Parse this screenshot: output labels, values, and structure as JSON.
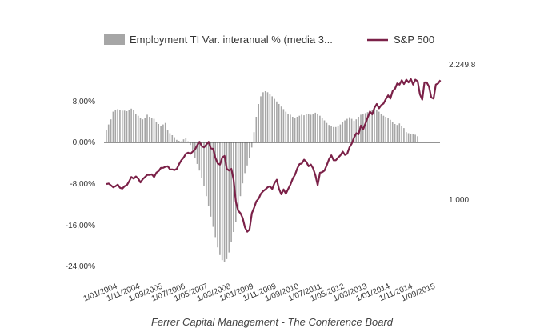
{
  "chart_data": {
    "type": "bar+line",
    "caption": "Ferrer Capital Management - The Conference Board",
    "legend": {
      "position": "top",
      "entries": [
        {
          "label": "Employment TI Var. interanual % (media 3...",
          "kind": "bar",
          "color": "#a6a6a6"
        },
        {
          "label": "S&P 500",
          "kind": "line",
          "color": "#7b2148"
        }
      ]
    },
    "x_start": "2004-01",
    "x_ticks": [
      "1/01/2004",
      "1/11/2004",
      "1/09/2005",
      "1/07/2006",
      "1/05/2007",
      "1/03/2008",
      "1/01/2009",
      "1/11/2009",
      "1/09/2010",
      "1/07/2011",
      "1/05/2012",
      "1/03/2013",
      "1/01/2014",
      "1/11/2014",
      "1/09/2015"
    ],
    "x_tick_month_index": [
      0,
      10,
      20,
      30,
      40,
      50,
      60,
      70,
      80,
      90,
      100,
      110,
      120,
      130,
      140
    ],
    "left_axis": {
      "ticks": [
        "8,00%",
        "0,00%",
        "-8,00%",
        "-16,00%",
        "-24,00%"
      ],
      "tick_values": [
        8,
        0,
        -8,
        -16,
        -24
      ],
      "range": [
        -25,
        11
      ]
    },
    "right_axis": {
      "ticks": [
        "2.249,8",
        "1.000"
      ],
      "tick_values": [
        2249.8,
        1000
      ]
    },
    "series": [
      {
        "name": "Employment TI Var. interanual % (media 3...",
        "type": "bar",
        "axis": "left",
        "color": "#a6a6a6",
        "values": [
          2.5,
          3.5,
          4.5,
          6.0,
          6.4,
          6.5,
          6.3,
          6.2,
          6.2,
          6.1,
          6.4,
          6.6,
          6.3,
          5.6,
          5.2,
          4.7,
          4.5,
          4.8,
          5.4,
          5.0,
          4.8,
          4.6,
          4.0,
          3.6,
          3.2,
          3.5,
          3.8,
          2.5,
          1.8,
          1.4,
          1.0,
          0.5,
          0.3,
          0.2,
          0.6,
          0.9,
          0.2,
          -0.5,
          -1.5,
          -3.0,
          -4.2,
          -5.5,
          -7.0,
          -8.5,
          -10.5,
          -12.5,
          -14.5,
          -16.5,
          -18.5,
          -20.5,
          -22.0,
          -23.0,
          -23.3,
          -22.8,
          -21.5,
          -19.5,
          -17.5,
          -15.5,
          -13.0,
          -10.5,
          -8.0,
          -6.0,
          -4.5,
          -3.0,
          -1.0,
          2.0,
          5.0,
          7.5,
          9.0,
          9.8,
          10.0,
          9.8,
          9.5,
          9.0,
          8.5,
          8.0,
          7.5,
          7.0,
          6.5,
          6.0,
          5.5,
          5.4,
          5.0,
          4.8,
          5.0,
          5.2,
          5.4,
          5.3,
          5.5,
          5.6,
          5.4,
          5.6,
          5.8,
          5.5,
          5.2,
          4.8,
          4.3,
          3.8,
          3.4,
          3.2,
          3.0,
          3.0,
          3.2,
          3.5,
          4.0,
          4.3,
          4.6,
          4.9,
          4.6,
          4.2,
          4.5,
          5.0,
          5.4,
          5.6,
          5.7,
          5.9,
          6.2,
          6.4,
          6.6,
          6.4,
          6.0,
          5.6,
          5.2,
          5.0,
          4.7,
          4.4,
          4.0,
          3.6,
          3.4,
          3.7,
          3.2,
          2.8,
          2.0,
          1.8,
          1.6,
          1.7,
          1.5,
          1.2
        ]
      },
      {
        "name": "S&P 500",
        "type": "line",
        "axis": "right",
        "color": "#7b2148",
        "values": [
          1140,
          1145,
          1128,
          1110,
          1120,
          1135,
          1105,
          1098,
          1120,
          1130,
          1165,
          1205,
          1190,
          1210,
          1190,
          1155,
          1185,
          1205,
          1225,
          1225,
          1230,
          1205,
          1245,
          1260,
          1290,
          1290,
          1300,
          1305,
          1275,
          1275,
          1270,
          1280,
          1325,
          1360,
          1385,
          1420,
          1430,
          1420,
          1440,
          1460,
          1500,
          1530,
          1490,
          1480,
          1505,
          1530,
          1470,
          1465,
          1380,
          1330,
          1320,
          1385,
          1400,
          1280,
          1265,
          1280,
          1180,
          975,
          895,
          870,
          825,
          740,
          700,
          720,
          870,
          920,
          980,
          1005,
          1050,
          1075,
          1090,
          1110,
          1120,
          1095,
          1150,
          1180,
          1095,
          1045,
          1090,
          1050,
          1095,
          1135,
          1190,
          1225,
          1285,
          1325,
          1330,
          1365,
          1345,
          1305,
          1320,
          1285,
          1220,
          1130,
          1245,
          1250,
          1265,
          1315,
          1370,
          1405,
          1360,
          1360,
          1385,
          1405,
          1440,
          1410,
          1420,
          1480,
          1515,
          1570,
          1610,
          1600,
          1680,
          1645,
          1700,
          1755,
          1810,
          1785,
          1845,
          1880,
          1840,
          1870,
          1885,
          1925,
          1960,
          1930,
          2000,
          2020,
          2070,
          2060,
          2100,
          2065,
          2105,
          2080,
          2110,
          2060,
          2105,
          2090,
          1970,
          1920,
          2080,
          2080,
          2040,
          1940,
          1930,
          2060,
          2070,
          2100
        ]
      }
    ]
  }
}
